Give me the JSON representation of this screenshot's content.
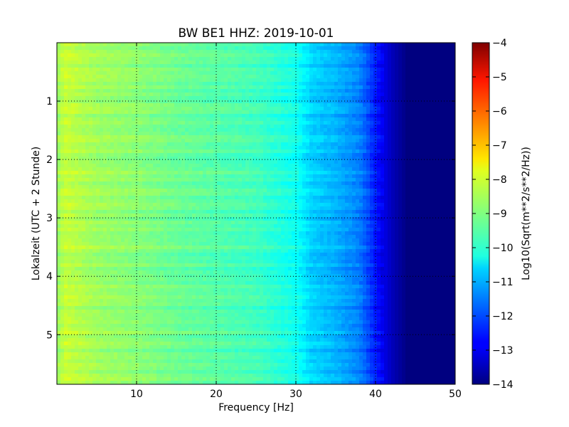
{
  "chart_data": {
    "type": "heatmap",
    "title": "BW BE1 HHZ: 2019-10-01",
    "xlabel": "Frequency [Hz]",
    "ylabel": "Lokalzeit (UTC + 2 Stunde)",
    "xlim": [
      0,
      50
    ],
    "ylim": [
      5.85,
      0
    ],
    "x_ticks": [
      10,
      20,
      30,
      40,
      50
    ],
    "y_ticks": [
      1,
      2,
      3,
      4,
      5
    ],
    "grid": true,
    "colorbar": {
      "label": "Log10(Sqrt(m**2/s**2/Hz))",
      "range": [
        -14,
        -4
      ],
      "ticks": [
        -4,
        -5,
        -6,
        -7,
        -8,
        -9,
        -10,
        -11,
        -12,
        -13,
        -14
      ],
      "colormap": "jet"
    },
    "frequency_profile": {
      "frequency_hz": [
        0,
        1,
        5,
        10,
        15,
        20,
        25,
        30,
        32,
        35,
        38,
        40,
        42,
        44,
        50
      ],
      "level": [
        -8.8,
        -8.3,
        -8.7,
        -8.9,
        -9.2,
        -9.4,
        -9.6,
        -10.1,
        -10.7,
        -11.0,
        -11.5,
        -12.5,
        -13.4,
        -14,
        -14
      ]
    }
  }
}
